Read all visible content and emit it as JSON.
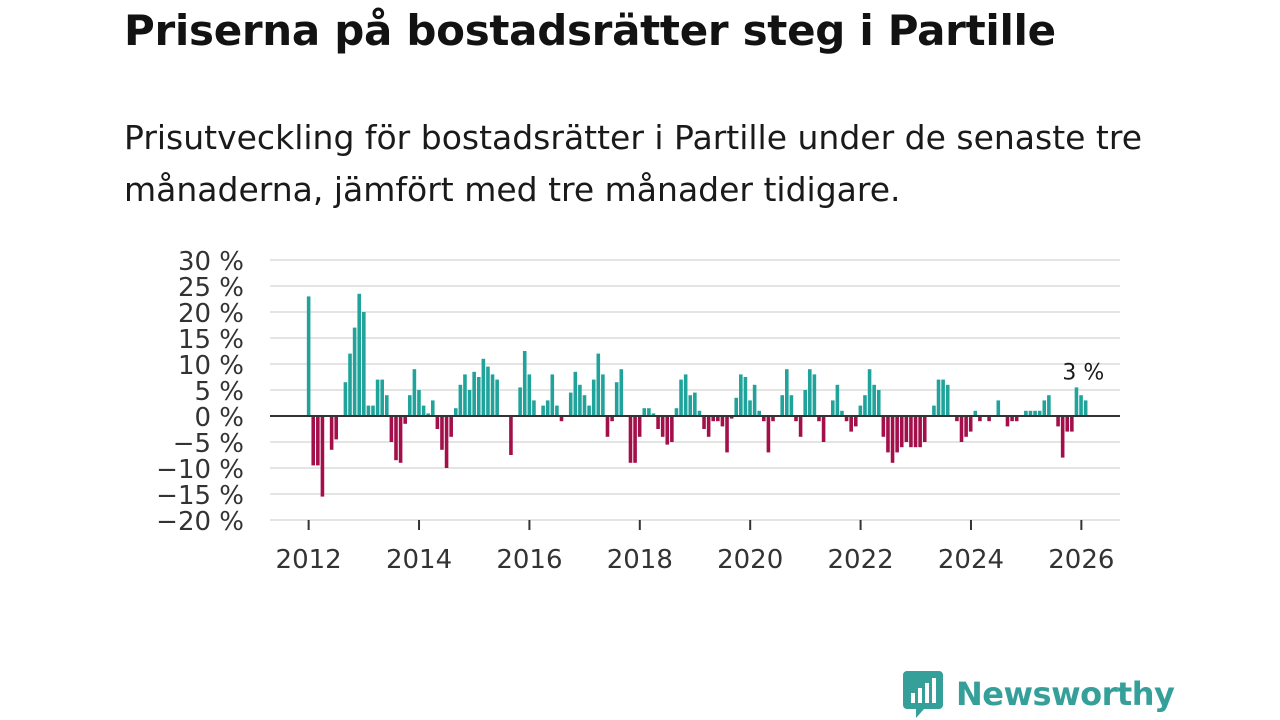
{
  "chart_data": {
    "type": "bar",
    "title": "Priserna på bostadsrätter steg i Partille",
    "subtitle": "Prisutveckling för bostadsrätter i Partille under de senaste tre månaderna, jämfört med tre månader tidigare.",
    "xlabel": "",
    "ylabel": "",
    "x_start": 2012.0,
    "x_step": 0.0833,
    "xlim": [
      2011.3,
      2026.7
    ],
    "ylim": [
      -20,
      30
    ],
    "grid": true,
    "y_ticks": [
      30,
      25,
      20,
      15,
      10,
      5,
      0,
      -5,
      -10,
      -15,
      -20
    ],
    "y_tick_labels": [
      "30 %",
      "25 %",
      "20 %",
      "15 %",
      "10 %",
      "5 %",
      "0 %",
      "−5 %",
      "−10 %",
      "−15 %",
      "−20 %"
    ],
    "x_ticks": [
      2012,
      2014,
      2016,
      2018,
      2020,
      2022,
      2024,
      2026
    ],
    "x_tick_labels": [
      "2012",
      "2014",
      "2016",
      "2018",
      "2020",
      "2022",
      "2024",
      "2026"
    ],
    "positive_color": "#1fa39b",
    "negative_color": "#a30f4a",
    "annotation": {
      "label": "3 %",
      "x": 2026.0
    },
    "values": [
      23.0,
      -9.5,
      -9.5,
      -15.5,
      0.0,
      -6.5,
      -4.5,
      0.0,
      6.5,
      12.0,
      17.0,
      23.5,
      20.0,
      2.0,
      2.0,
      7.0,
      7.0,
      4.0,
      -5.0,
      -8.5,
      -9.0,
      -1.5,
      4.0,
      9.0,
      5.0,
      2.0,
      0.5,
      3.0,
      -2.5,
      -6.5,
      -10.0,
      -4.0,
      1.5,
      6.0,
      8.0,
      5.0,
      8.5,
      7.5,
      11.0,
      9.5,
      8.0,
      7.0,
      0.0,
      0.0,
      -7.5,
      0.0,
      5.5,
      12.5,
      8.0,
      3.0,
      0.0,
      2.0,
      3.0,
      8.0,
      2.0,
      -1.0,
      0.0,
      4.5,
      8.5,
      6.0,
      4.0,
      2.0,
      7.0,
      12.0,
      8.0,
      -4.0,
      -1.0,
      6.5,
      9.0,
      0.0,
      -9.0,
      -9.0,
      -4.0,
      1.5,
      1.5,
      0.5,
      -2.5,
      -4.0,
      -5.5,
      -5.0,
      1.5,
      7.0,
      8.0,
      4.0,
      4.5,
      1.0,
      -2.5,
      -4.0,
      -1.0,
      -1.0,
      -2.0,
      -7.0,
      -0.5,
      3.5,
      8.0,
      7.5,
      3.0,
      6.0,
      1.0,
      -1.0,
      -7.0,
      -1.0,
      0.0,
      4.0,
      9.0,
      4.0,
      -1.0,
      -4.0,
      5.0,
      9.0,
      8.0,
      -1.0,
      -5.0,
      0.0,
      3.0,
      6.0,
      1.0,
      -1.0,
      -3.0,
      -2.0,
      2.0,
      4.0,
      9.0,
      6.0,
      5.0,
      -4.0,
      -7.0,
      -9.0,
      -7.0,
      -6.0,
      -5.0,
      -6.0,
      -6.0,
      -6.0,
      -5.0,
      0.0,
      2.0,
      7.0,
      7.0,
      6.0,
      0.0,
      -1.0,
      -5.0,
      -4.0,
      -3.0,
      1.0,
      -1.0,
      0.0,
      -1.0,
      0.0,
      3.0,
      0.0,
      -2.0,
      -1.0,
      -1.0,
      0.0,
      1.0,
      1.0,
      1.0,
      1.0,
      3.0,
      4.0,
      0.0,
      -2.0,
      -8.0,
      -3.0,
      -3.0,
      5.5,
      4.0,
      3.0
    ]
  },
  "brand": {
    "name": "Newsworthy",
    "color": "#35a09a"
  }
}
